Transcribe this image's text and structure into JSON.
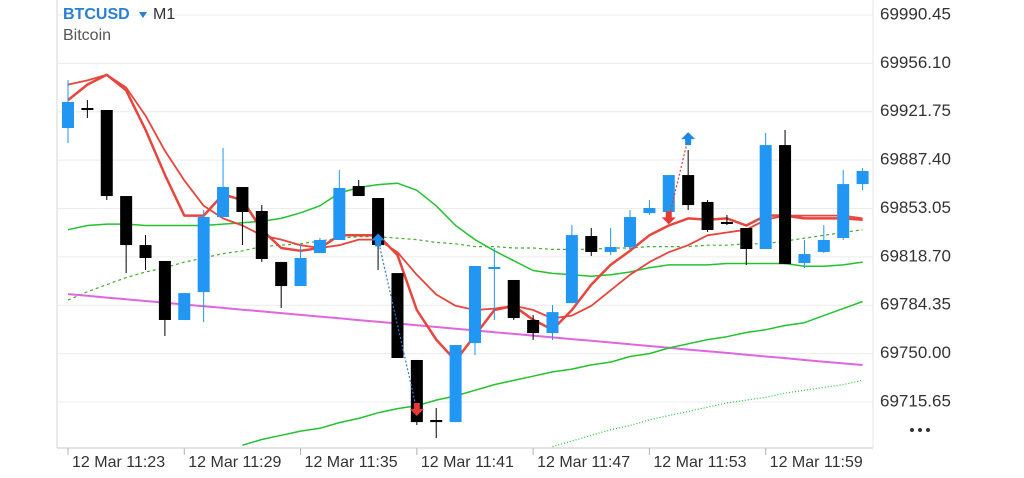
{
  "chart_data": {
    "type": "candlestick",
    "symbol": "BTCUSD",
    "timeframe": "M1",
    "description": "Bitcoin",
    "categories": [
      "12 Mar 11:23",
      null,
      null,
      null,
      null,
      null,
      "12 Mar 11:29",
      null,
      null,
      null,
      null,
      null,
      "12 Mar 11:35",
      null,
      null,
      null,
      null,
      null,
      "12 Mar 11:41",
      null,
      null,
      null,
      null,
      null,
      "12 Mar 11:47",
      null,
      null,
      null,
      null,
      null,
      "12 Mar 11:53",
      null,
      null,
      null,
      null,
      null,
      "12 Mar 11:59",
      null,
      null,
      null,
      null,
      null
    ],
    "open": [
      69910.2,
      69924.4,
      69923.0,
      69861.9,
      69827.1,
      69815.8,
      69773.9,
      69793.7,
      69847.0,
      69868.3,
      69851.3,
      69815.1,
      69798.0,
      69821.4,
      69830.7,
      69869.0,
      69860.5,
      69807.2,
      69745.5,
      69702.9,
      69701.4,
      69757.5,
      69810.1,
      69802.3,
      69773.9,
      69764.6,
      69785.9,
      69833.5,
      69822.2,
      69825.7,
      69849.8,
      69850.6,
      69876.8,
      69857.7,
      69843.5,
      69839.2,
      69824.3,
      69898.1,
      69814.3,
      69822.2,
      69832.1,
      69870.4
    ],
    "high": [
      69944.3,
      69930.1,
      69923.0,
      69861.9,
      69834.2,
      69815.8,
      69793.0,
      69852.0,
      69896.0,
      69868.3,
      69855.5,
      69815.1,
      69827.1,
      69832.1,
      69880.4,
      69873.3,
      69860.5,
      69807.2,
      69745.5,
      69711.4,
      69756.1,
      69812.2,
      69825.0,
      69802.3,
      69777.4,
      69784.5,
      69841.3,
      69839.2,
      69839.2,
      69852.0,
      69859.1,
      69876.8,
      69894.6,
      69859.1,
      69848.4,
      69839.2,
      69906.7,
      69908.8,
      69830.7,
      69841.3,
      69880.4,
      69881.8
    ],
    "low": [
      69899.6,
      69917.3,
      69859.1,
      69807.2,
      69809.4,
      69762.5,
      69773.9,
      69772.4,
      69847.0,
      69827.1,
      69815.1,
      69782.4,
      69798.0,
      69821.4,
      69830.7,
      69861.9,
      69809.4,
      69746.9,
      69699.3,
      69690.1,
      69701.4,
      69749.0,
      69773.9,
      69773.9,
      69759.7,
      69759.7,
      69785.9,
      69819.3,
      69820.0,
      69823.6,
      69848.4,
      69850.6,
      69852.0,
      69836.4,
      69841.3,
      69812.9,
      69824.3,
      69813.6,
      69810.8,
      69821.4,
      69830.7,
      69866.2
    ],
    "close": [
      69928.7,
      69924.4,
      69861.9,
      69827.1,
      69817.9,
      69773.9,
      69793.0,
      69847.0,
      69868.3,
      69850.6,
      69817.2,
      69798.0,
      69817.9,
      69830.7,
      69867.6,
      69861.9,
      69827.1,
      69746.9,
      69701.4,
      69701.4,
      69756.1,
      69812.2,
      69811.5,
      69775.3,
      69764.6,
      69779.5,
      69834.2,
      69822.2,
      69825.7,
      69847.0,
      69853.4,
      69876.8,
      69855.5,
      69837.8,
      69842.7,
      69824.3,
      69898.1,
      69813.6,
      69820.7,
      69830.7,
      69870.4,
      69879.7
    ],
    "up_color": "#2196f3",
    "down_color": "#000000",
    "lines": [
      {
        "color": "#22c32e",
        "width": 1.5,
        "dash": "none",
        "values": [
          69838,
          69841,
          69842,
          69842,
          69841,
          69841,
          69841,
          69841,
          69842,
          69843,
          69844,
          69846,
          69850,
          69855,
          69864,
          69868,
          69870,
          69871,
          69866,
          69855,
          69841,
          69831,
          69823,
          69816,
          69809,
          69807,
          69806,
          69805,
          69806,
          69808,
          69811,
          69813,
          69813,
          69813,
          69814,
          69814,
          69814,
          69814,
          69812,
          69812,
          69813,
          69815
        ]
      },
      {
        "color": "#3fae2a",
        "width": 1.2,
        "dash": "3,3",
        "values": [
          69788,
          69794,
          69799,
          69804,
          69808,
          69811,
          69815,
          69818,
          69821,
          69823,
          69826,
          69827,
          69828,
          69830,
          69832,
          69833,
          69833,
          69832,
          69831,
          69829,
          69828,
          69826,
          69826,
          69825,
          69825,
          69824,
          69824,
          69824,
          69825,
          69825,
          69826,
          69826,
          69826,
          69827,
          69827,
          69828,
          69828,
          69830,
          69832,
          69834,
          69836,
          69838
        ]
      },
      {
        "color": "#e066e0",
        "width": 2,
        "dash": "none",
        "values": [
          69792.3,
          69791.1,
          69789.8,
          69788.6,
          69787.4,
          69786.1,
          69784.9,
          69783.7,
          69782.5,
          69781.2,
          69780.0,
          69778.8,
          69777.5,
          69776.3,
          69775.1,
          69773.8,
          69772.6,
          69771.4,
          69770.2,
          69768.9,
          69767.7,
          69766.5,
          69765.2,
          69764.0,
          69762.8,
          69761.5,
          69760.3,
          69759.1,
          69757.9,
          69756.6,
          69755.4,
          69754.2,
          69752.9,
          69751.7,
          69750.5,
          69749.2,
          69748.0,
          69746.8,
          69745.5,
          69744.3,
          69743.1,
          69741.9
        ]
      },
      {
        "color": "#22c32e",
        "width": 1.5,
        "dash": "none",
        "values": [
          null,
          null,
          null,
          null,
          null,
          null,
          null,
          null,
          null,
          69685,
          69689,
          69692,
          69695,
          69697,
          69701,
          69704,
          69708,
          69711,
          69713,
          69717,
          69720,
          69724,
          69728,
          69731,
          69734,
          69737,
          69739,
          69742,
          69744,
          69748,
          69750,
          69754,
          69757,
          69760,
          69762,
          69765,
          69767,
          69770,
          69772,
          69777,
          69782,
          69787
        ]
      },
      {
        "color": "#22c32e",
        "width": 1.2,
        "dash": "1,2",
        "values": [
          null,
          null,
          null,
          null,
          null,
          null,
          null,
          null,
          null,
          null,
          null,
          null,
          null,
          null,
          null,
          null,
          null,
          null,
          null,
          null,
          null,
          null,
          null,
          null,
          null,
          69684,
          69688,
          69692,
          69696,
          69699,
          69703,
          69706,
          69709,
          69712,
          69715,
          69717,
          69719,
          69722,
          69724,
          69726,
          69728,
          69731
        ]
      },
      {
        "color": "#e8453c",
        "width": 2.5,
        "dash": "none",
        "values": [
          69930,
          69941,
          69948,
          69937,
          69909,
          69877,
          69848,
          69848,
          69863,
          69859,
          69838,
          69825,
          69823,
          69825,
          69834,
          69834,
          69834,
          69820,
          69781,
          69760,
          69745,
          69763,
          69781,
          69784,
          69774,
          69767,
          69781,
          69799,
          69813,
          69823,
          69834,
          69841,
          69846,
          69845,
          69846,
          69841,
          69848,
          69848,
          69846,
          69846,
          69846,
          69845
        ]
      },
      {
        "color": "#e8453c",
        "width": 1.8,
        "dash": "none",
        "values": [
          69941,
          69944,
          69948,
          69939,
          69919,
          69894,
          69873,
          69855,
          69846,
          69841,
          69834,
          69831,
          69827,
          69825,
          69827,
          69831,
          69831,
          69822,
          69806,
          69792,
          69784,
          69781,
          69782,
          69784,
          69781,
          69775,
          69777,
          69784,
          69795,
          69806,
          69815,
          69822,
          69827,
          69834,
          69836,
          69838,
          69845,
          69848,
          69848,
          69848,
          69848,
          69846
        ]
      }
    ],
    "trades": [
      {
        "color": "#2a7fd4",
        "points": [
          {
            "index": 16,
            "price": 69831,
            "arrow": "up",
            "color": "#1e88e5"
          },
          {
            "index": 18,
            "price": 69710,
            "arrow": "down",
            "color": "#e53935"
          }
        ]
      },
      {
        "color": "#e53935",
        "points": [
          {
            "index": 31,
            "price": 69846,
            "arrow": "down",
            "color": "#e53935"
          },
          {
            "index": 32,
            "price": 69903,
            "arrow": "up",
            "color": "#1e88e5"
          }
        ]
      }
    ],
    "ylim": [
      69683,
      70001.1
    ],
    "yticks": [
      69715.65,
      {
        "value": 69750,
        "label": "69750.00"
      },
      69784.35,
      {
        "value": 69818.7,
        "label": "69818.70"
      },
      69853.05,
      {
        "value": 69887.4,
        "label": "69887.40"
      },
      69921.75,
      {
        "value": 69956.1,
        "label": "69956.10"
      },
      69990.45
    ],
    "grid": true
  }
}
